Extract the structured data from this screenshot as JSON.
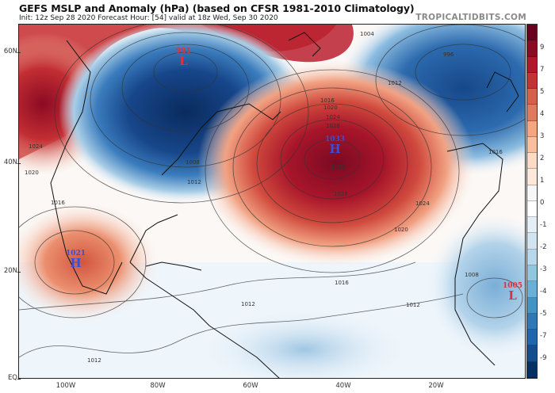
{
  "header": {
    "title": "GEFS MSLP and Anomaly (hPa) (based on CFSR 1981-2010 Climatology)",
    "subtitle": "Init: 12z Sep 28 2020   Forecast Hour: [54]   valid at 18z Wed, Sep 30 2020",
    "brand": "TROPICALTIDBITS.COM"
  },
  "axes": {
    "lat_labels": [
      "60N",
      "40N",
      "20N",
      "EQ"
    ],
    "lon_labels": [
      "100W",
      "80W",
      "60W",
      "40W",
      "20W"
    ]
  },
  "colorbar": {
    "tick_labels": [
      "9",
      "7",
      "5",
      "4",
      "3",
      "2",
      "1",
      "0",
      "-1",
      "-2",
      "-3",
      "-4",
      "-5",
      "-7",
      "-9"
    ],
    "colors": [
      "#67001f",
      "#8c0a24",
      "#b2182b",
      "#c33335",
      "#d6604d",
      "#e0795f",
      "#f4a582",
      "#f7bea0",
      "#fddbc7",
      "#fde8dc",
      "#f7f7f7",
      "#ffffff",
      "#e3eef7",
      "#d1e5f0",
      "#b9d7ea",
      "#92c5de",
      "#6baed6",
      "#4393c3",
      "#2f77b5",
      "#2166ac",
      "#154d8c",
      "#053061"
    ]
  },
  "pressure_systems": [
    {
      "type": "L",
      "value": "991",
      "color": "#e0303a"
    },
    {
      "type": "H",
      "value": "1033",
      "color": "#3a4fd8"
    },
    {
      "type": "H",
      "value": "1021",
      "color": "#3a4fd8"
    },
    {
      "type": "L",
      "value": "1005",
      "color": "#e0303a"
    }
  ],
  "contour_labels": [
    "1004",
    "996",
    "1012",
    "1016",
    "1020",
    "1024",
    "1028",
    "1032",
    "1008",
    "1024",
    "1020",
    "1016",
    "1012",
    "1008",
    "1012",
    "1012",
    "1016",
    "1020",
    "1024",
    "1000",
    "1008",
    "1012"
  ]
}
